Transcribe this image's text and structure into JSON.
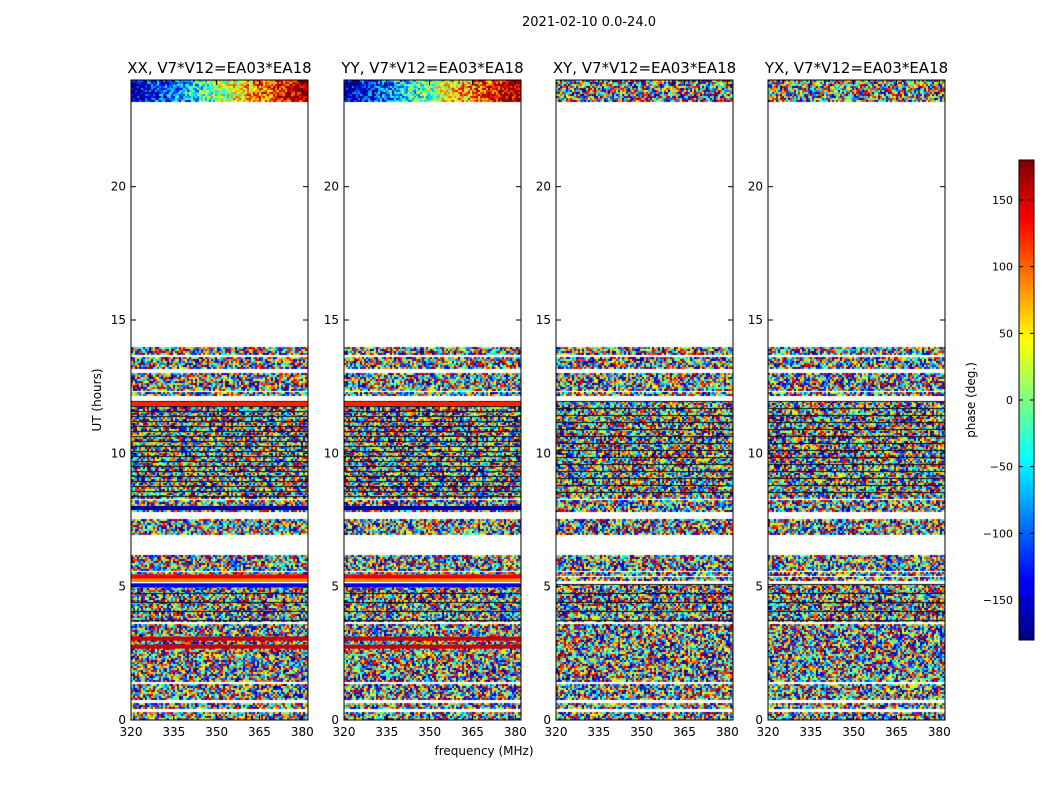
{
  "suptitle": "2021-02-10 0.0-24.0",
  "chart_data": {
    "type": "heatmap",
    "xlabel": "frequency (MHz)",
    "ylabel": "UT (hours)",
    "xlim": [
      320,
      382
    ],
    "ylim": [
      0,
      24
    ],
    "xticks": [
      320,
      335,
      350,
      365,
      380
    ],
    "yticks": [
      0,
      5,
      10,
      15,
      20
    ],
    "colorbar": {
      "label": "phase (deg.)",
      "range": [
        -180,
        180
      ],
      "ticks": [
        150,
        100,
        50,
        0,
        -50,
        -100,
        -150
      ],
      "tick_labels": [
        "150",
        "100",
        "50",
        "0",
        "−50",
        "−100",
        "−150"
      ],
      "colormap": [
        "#00007f",
        "#0000ff",
        "#007fff",
        "#00ffff",
        "#7fff7f",
        "#ffff00",
        "#ff7f00",
        "#ff0000",
        "#7f0000"
      ]
    },
    "data_bands_hours": [
      [
        0.0,
        0.3
      ],
      [
        0.45,
        0.65
      ],
      [
        0.8,
        1.35
      ],
      [
        1.45,
        1.5
      ],
      [
        1.55,
        3.6
      ],
      [
        3.7,
        5.1
      ],
      [
        5.2,
        5.35
      ],
      [
        5.45,
        5.55
      ],
      [
        5.6,
        6.2
      ],
      [
        6.95,
        7.55
      ],
      [
        7.8,
        8.25
      ],
      [
        8.3,
        11.95
      ],
      [
        12.15,
        12.3
      ],
      [
        12.35,
        13.0
      ],
      [
        13.2,
        13.6
      ],
      [
        13.7,
        14.0
      ],
      [
        23.2,
        24.0
      ]
    ],
    "panels": [
      {
        "title": "XX, V7*V12=EA03*EA18",
        "pattern": "coherent",
        "streaks": [
          {
            "hour": 5.05,
            "color": "#0000ff"
          },
          {
            "hour": 5.25,
            "color": "#ff8800"
          },
          {
            "hour": 5.38,
            "color": "#ff0000"
          },
          {
            "hour": 3.05,
            "color": "#cc0000"
          },
          {
            "hour": 2.75,
            "color": "#cc0000"
          },
          {
            "hour": 11.85,
            "color": "#ff2200"
          },
          {
            "hour": 7.95,
            "color": "#0000aa"
          }
        ]
      },
      {
        "title": "YY, V7*V12=EA03*EA18",
        "pattern": "coherent",
        "streaks": [
          {
            "hour": 5.05,
            "color": "#0000ff"
          },
          {
            "hour": 5.25,
            "color": "#ff8800"
          },
          {
            "hour": 5.38,
            "color": "#ff0000"
          },
          {
            "hour": 3.05,
            "color": "#cc0000"
          },
          {
            "hour": 2.75,
            "color": "#cc0000"
          },
          {
            "hour": 11.85,
            "color": "#ff2200"
          },
          {
            "hour": 7.95,
            "color": "#0000aa"
          }
        ]
      },
      {
        "title": "XY, V7*V12=EA03*EA18",
        "pattern": "noise",
        "streaks": []
      },
      {
        "title": "YX, V7*V12=EA03*EA18",
        "pattern": "noise",
        "streaks": []
      }
    ]
  }
}
